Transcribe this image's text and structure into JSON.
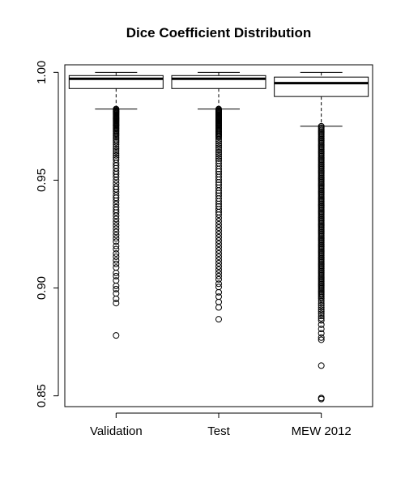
{
  "chart_data": {
    "type": "boxplot",
    "title": "Dice Coefficient Distribution",
    "xlabel": "",
    "ylabel": "",
    "ylim": [
      0.845,
      1.0035
    ],
    "yticks": [
      0.85,
      0.9,
      0.95,
      1.0
    ],
    "ytick_labels": [
      "0.85",
      "0.90",
      "0.95",
      "1.00"
    ],
    "categories": [
      "Validation",
      "Test",
      "MEW 2012"
    ],
    "series": [
      {
        "category": "Validation",
        "whisker_low": 0.983,
        "q1": 0.9925,
        "median": 0.997,
        "q3": 0.9985,
        "whisker_high": 1.0,
        "outliers": [
          0.983,
          0.9826,
          0.9822,
          0.9818,
          0.9814,
          0.981,
          0.9806,
          0.9802,
          0.9798,
          0.9794,
          0.979,
          0.9786,
          0.9782,
          0.9778,
          0.9774,
          0.977,
          0.9766,
          0.9762,
          0.9758,
          0.9754,
          0.975,
          0.9745,
          0.974,
          0.9735,
          0.973,
          0.9725,
          0.9718,
          0.9712,
          0.9705,
          0.9698,
          0.969,
          0.9683,
          0.9675,
          0.9665,
          0.9655,
          0.9645,
          0.9635,
          0.9625,
          0.9615,
          0.9605,
          0.9595,
          0.958,
          0.9568,
          0.9555,
          0.954,
          0.9528,
          0.9515,
          0.95,
          0.9485,
          0.947,
          0.9458,
          0.9445,
          0.943,
          0.9418,
          0.9405,
          0.939,
          0.9375,
          0.9362,
          0.935,
          0.9335,
          0.932,
          0.9305,
          0.929,
          0.9275,
          0.926,
          0.9245,
          0.923,
          0.9215,
          0.9195,
          0.918,
          0.916,
          0.9145,
          0.9128,
          0.9112,
          0.9095,
          0.907,
          0.9055,
          0.9035,
          0.901,
          0.8995,
          0.8975,
          0.895,
          0.893,
          0.878
        ]
      },
      {
        "category": "Test",
        "whisker_low": 0.983,
        "q1": 0.9925,
        "median": 0.997,
        "q3": 0.9985,
        "whisker_high": 1.0,
        "outliers": [
          0.983,
          0.9826,
          0.9822,
          0.9818,
          0.9814,
          0.981,
          0.9806,
          0.9802,
          0.9798,
          0.9794,
          0.979,
          0.9786,
          0.9782,
          0.9778,
          0.9774,
          0.977,
          0.9766,
          0.9762,
          0.9758,
          0.9754,
          0.975,
          0.9745,
          0.974,
          0.9735,
          0.973,
          0.9725,
          0.972,
          0.9715,
          0.971,
          0.9705,
          0.97,
          0.969,
          0.968,
          0.967,
          0.966,
          0.965,
          0.964,
          0.963,
          0.962,
          0.961,
          0.96,
          0.959,
          0.9578,
          0.9565,
          0.9552,
          0.954,
          0.9528,
          0.9515,
          0.9502,
          0.949,
          0.9478,
          0.9465,
          0.9452,
          0.944,
          0.9428,
          0.9415,
          0.9402,
          0.939,
          0.9378,
          0.9365,
          0.9352,
          0.934,
          0.9325,
          0.931,
          0.9295,
          0.928,
          0.9265,
          0.925,
          0.9235,
          0.922,
          0.9205,
          0.919,
          0.9175,
          0.916,
          0.9145,
          0.913,
          0.9115,
          0.91,
          0.9085,
          0.907,
          0.9055,
          0.904,
          0.902,
          0.9005,
          0.898,
          0.896,
          0.8935,
          0.891,
          0.8855
        ]
      },
      {
        "category": "MEW 2012",
        "whisker_low": 0.975,
        "q1": 0.9888,
        "median": 0.995,
        "q3": 0.9978,
        "whisker_high": 1.0,
        "outliers": [
          0.975,
          0.9744,
          0.9738,
          0.9732,
          0.9726,
          0.972,
          0.9714,
          0.9708,
          0.9702,
          0.9696,
          0.969,
          0.9684,
          0.9678,
          0.9672,
          0.9666,
          0.966,
          0.9654,
          0.9648,
          0.9642,
          0.9636,
          0.963,
          0.9624,
          0.9618,
          0.9612,
          0.9606,
          0.96,
          0.9594,
          0.9588,
          0.9582,
          0.9576,
          0.957,
          0.9564,
          0.9558,
          0.9552,
          0.9546,
          0.954,
          0.9534,
          0.9528,
          0.9522,
          0.9516,
          0.951,
          0.9504,
          0.9498,
          0.9492,
          0.9486,
          0.948,
          0.9474,
          0.9468,
          0.9462,
          0.9456,
          0.945,
          0.9444,
          0.9438,
          0.9432,
          0.9426,
          0.942,
          0.9414,
          0.9408,
          0.9402,
          0.9396,
          0.939,
          0.9384,
          0.9378,
          0.9372,
          0.9366,
          0.936,
          0.9354,
          0.9348,
          0.9342,
          0.9336,
          0.933,
          0.9324,
          0.9318,
          0.9312,
          0.9306,
          0.93,
          0.9294,
          0.9288,
          0.9282,
          0.9276,
          0.927,
          0.9264,
          0.9258,
          0.9252,
          0.9246,
          0.924,
          0.9234,
          0.9228,
          0.9222,
          0.9216,
          0.921,
          0.9204,
          0.9198,
          0.9192,
          0.9186,
          0.918,
          0.9174,
          0.9168,
          0.9162,
          0.9156,
          0.915,
          0.9144,
          0.9138,
          0.9132,
          0.9126,
          0.912,
          0.9114,
          0.9108,
          0.9102,
          0.9096,
          0.909,
          0.9084,
          0.9078,
          0.9072,
          0.9066,
          0.906,
          0.9054,
          0.9048,
          0.9042,
          0.9036,
          0.903,
          0.9024,
          0.9018,
          0.9012,
          0.9006,
          0.9,
          0.8994,
          0.8988,
          0.8982,
          0.8976,
          0.897,
          0.8964,
          0.8958,
          0.895,
          0.894,
          0.893,
          0.892,
          0.891,
          0.89,
          0.889,
          0.888,
          0.887,
          0.886,
          0.885,
          0.883,
          0.881,
          0.879,
          0.877,
          0.876,
          0.864,
          0.849,
          0.8485
        ]
      }
    ]
  }
}
